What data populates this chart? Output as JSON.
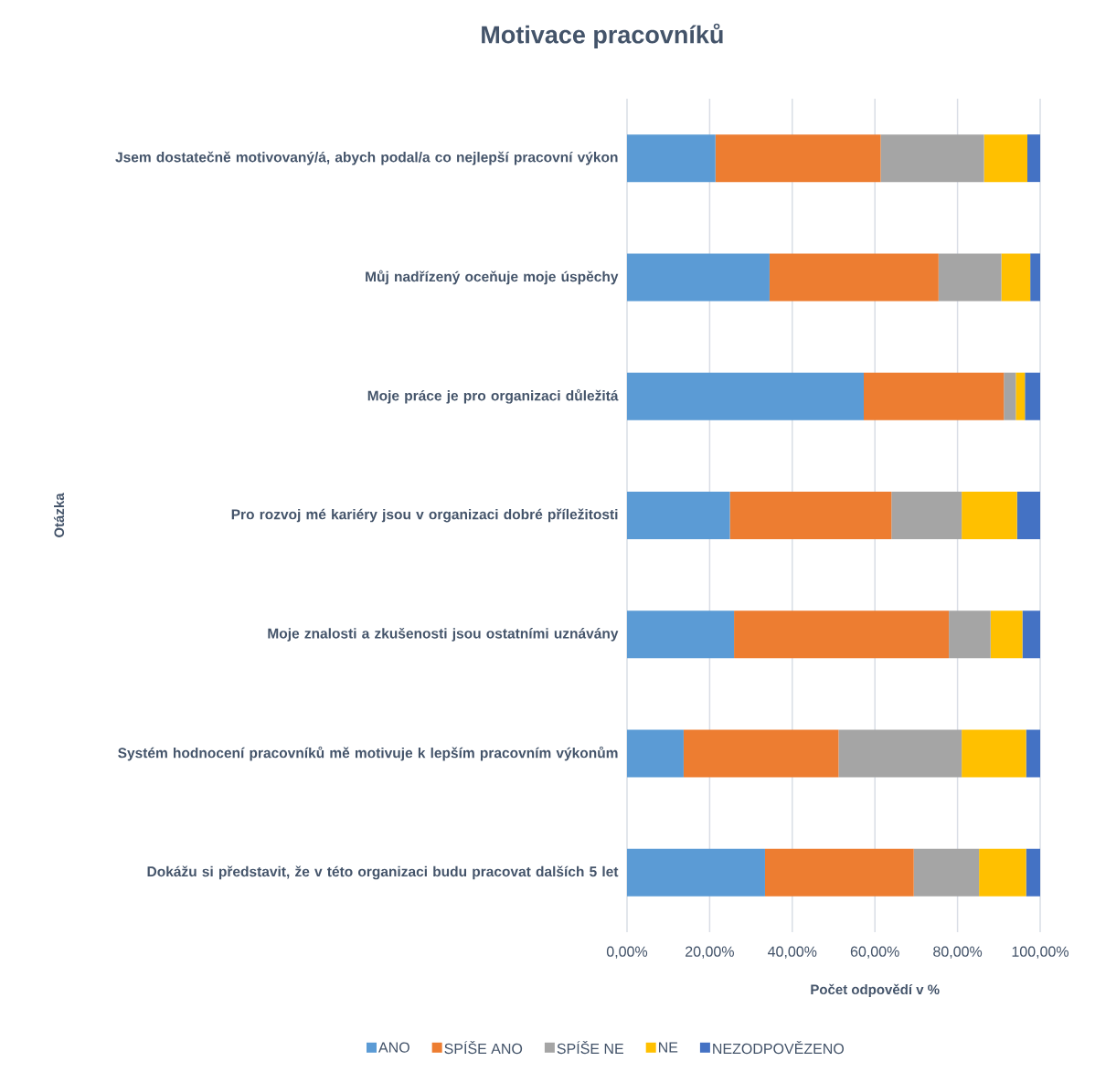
{
  "chart_data": {
    "type": "bar",
    "orientation": "horizontal",
    "stacked": true,
    "title": "Motivace pracovníků",
    "xlabel": "Počet odpovědí v %",
    "ylabel": "Otázka",
    "categories": [
      "Jsem dostatečně motivovaný/á, abych podal/a co nejlepší pracovní výkon",
      "Můj nadřízený oceňuje moje úspěchy",
      "Moje práce je pro organizaci důležitá",
      "Pro rozvoj mé kariéry jsou v organizaci dobré příležitosti",
      "Moje znalosti a zkušenosti jsou ostatními uznávány",
      "Systém hodnocení pracovníků mě motivuje k lepším pracovním výkonům",
      "Dokážu si představit, že v této organizaci budu pracovat dalších 5 let"
    ],
    "series": [
      {
        "name": "ANO",
        "color": "#5b9bd5",
        "values": [
          21.4,
          34.5,
          57.3,
          24.9,
          25.9,
          13.7,
          33.4
        ]
      },
      {
        "name": "SPÍŠE ANO",
        "color": "#ed7d31",
        "values": [
          40.0,
          40.9,
          33.9,
          39.1,
          52.0,
          37.5,
          36.0
        ]
      },
      {
        "name": "SPÍŠE NE",
        "color": "#a5a5a5",
        "values": [
          25.0,
          15.2,
          2.9,
          17.0,
          10.1,
          29.8,
          15.8
        ]
      },
      {
        "name": "NE",
        "color": "#ffc000",
        "values": [
          10.5,
          7.0,
          2.2,
          13.4,
          7.7,
          15.6,
          11.4
        ]
      },
      {
        "name": "NEZODPOVĚZENO",
        "color": "#4472c4",
        "values": [
          3.1,
          2.4,
          3.7,
          5.6,
          4.3,
          3.4,
          3.4
        ]
      }
    ],
    "xlim": [
      0,
      100
    ],
    "xticks": [
      {
        "value": 0,
        "label": "0,00%"
      },
      {
        "value": 20,
        "label": "20,00%"
      },
      {
        "value": 40,
        "label": "40,00%"
      },
      {
        "value": 60,
        "label": "60,00%"
      },
      {
        "value": 80,
        "label": "80,00%"
      },
      {
        "value": 100,
        "label": "100,00%"
      }
    ],
    "grid": "x",
    "legend": "bottom"
  }
}
